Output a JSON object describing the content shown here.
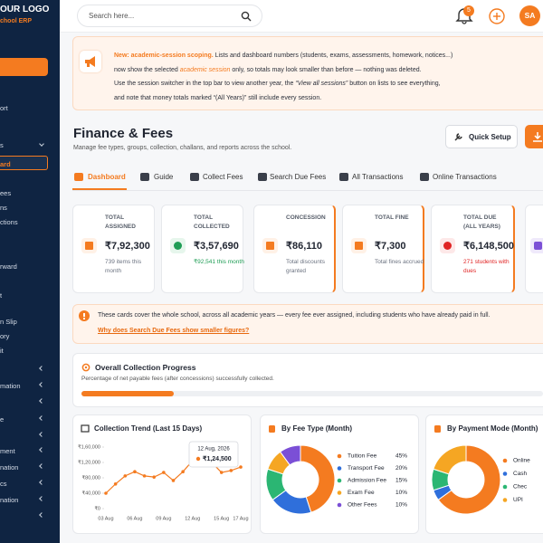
{
  "sidebar": {
    "logo": "OUR LOGO",
    "subtitle": "chool ERP",
    "items": [
      "ort",
      "s",
      "ard",
      "ees",
      "ns",
      "ctions",
      "rward",
      "t",
      "n Slip",
      "ory",
      "it",
      "mation",
      "e",
      "ment",
      "nation",
      "cs",
      "nation"
    ]
  },
  "topbar": {
    "search_placeholder": "Search here...",
    "notification_count": 5,
    "avatar": "SA"
  },
  "notice": {
    "highlight": "New: academic-session scoping.",
    "line1": "Lists and dashboard numbers (students, exams, assessments, homework, notices...)",
    "line2a": "now show the selected",
    "line2b": "academic session",
    "line2c": "only, so totals may look smaller than before — nothing was deleted.",
    "line3a": "Use the session switcher in the top bar to view another year, the",
    "line3b": "“View all sessions”",
    "line3c": "button on lists to see everything,",
    "line4": "and note that money totals marked “(All Years)” still include every session."
  },
  "header": {
    "title": "Finance & Fees",
    "subtitle": "Manage fee types, groups, collection, challans, and reports across the school.",
    "quick_setup": "Quick Setup"
  },
  "tabs": [
    "Dashboard",
    "Guide",
    "Collect Fees",
    "Search Due Fees",
    "All Transactions",
    "Online Transactions"
  ],
  "cards": [
    {
      "label": "TOTAL ASSIGNED",
      "value": "₹7,92,300",
      "note": "739 items this month"
    },
    {
      "label": "TOTAL COLLECTED",
      "value": "₹3,57,690",
      "note": "₹92,541 this month"
    },
    {
      "label": "CONCESSION",
      "value": "₹86,110",
      "note": "Total discounts granted"
    },
    {
      "label": "TOTAL FINE",
      "value": "₹7,300",
      "note": "Total fines accrued"
    },
    {
      "label": "TOTAL DUE (ALL YEARS)",
      "value": "₹6,148,500",
      "note": "271 students with dues"
    }
  ],
  "info": {
    "text": "These cards cover the whole school, across all academic years — every fee ever assigned, including students who have already paid in full.",
    "link": "Why does Search Due Fees show smaller figures?"
  },
  "progress": {
    "title": "Overall Collection Progress",
    "subtitle": "Percentage of net payable fees (after concessions) successfully collected.",
    "percent": 20
  },
  "chart_data": [
    {
      "type": "line",
      "title": "Collection Trend (Last 15 Days)",
      "categories": [
        "03 Aug",
        null,
        null,
        "06 Aug",
        null,
        null,
        "09 Aug",
        null,
        null,
        "12 Aug",
        null,
        null,
        "15 Aug",
        null,
        "17 Aug"
      ],
      "values": [
        40000,
        64000,
        85000,
        96000,
        85000,
        82000,
        94000,
        73000,
        96000,
        124500,
        118000,
        120000,
        94000,
        99000,
        108000
      ],
      "color": "#f47b20",
      "ylim": [
        0,
        160000
      ],
      "yticks": [
        {
          "value": 0,
          "label": "₹0"
        },
        {
          "value": 40000,
          "label": "₹40,000"
        },
        {
          "value": 80000,
          "label": "₹80,000"
        },
        {
          "value": 120000,
          "label": "₹1,20,000"
        },
        {
          "value": 160000,
          "label": "₹1,60,000"
        }
      ],
      "tooltip": {
        "title": "12 Aug, 2026",
        "label": "₹1,24,500"
      }
    },
    {
      "type": "pie",
      "title": "By Fee Type (Month)",
      "categories": [
        "Tuition Fee",
        "Transport Fee",
        "Admission Fee",
        "Exam Fee",
        "Other Fees"
      ],
      "values": [
        45,
        20,
        15,
        10,
        10
      ],
      "value_labels": [
        "45%",
        "20%",
        "15%",
        "10%",
        "10%"
      ],
      "colors": [
        "#f47b20",
        "#2f6fdb",
        "#2bb673",
        "#f5a623",
        "#7b4fd6"
      ]
    },
    {
      "type": "pie",
      "title": "By Payment Mode (Month)",
      "categories": [
        "Online",
        "Cash",
        "Chec",
        "UPI"
      ],
      "values": [
        65,
        5,
        10,
        20
      ],
      "colors": [
        "#f47b20",
        "#2f6fdb",
        "#2bb673",
        "#f5a623"
      ]
    }
  ]
}
